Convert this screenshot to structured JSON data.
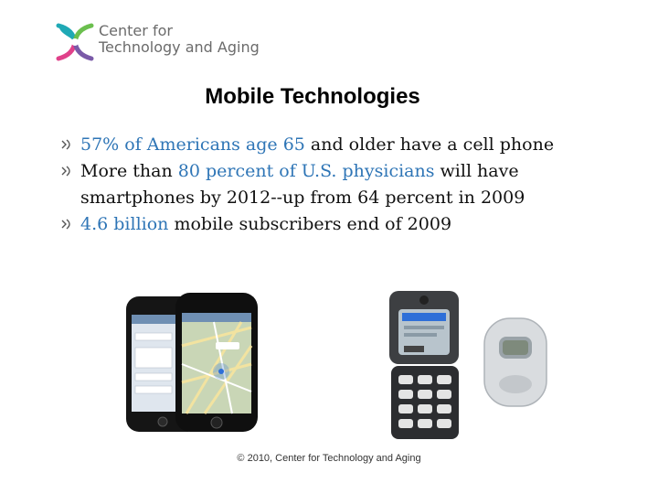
{
  "logo": {
    "line1": "Center for",
    "line2": "Technology and Aging",
    "colors": [
      "#1fa9b5",
      "#6bbf4e",
      "#e0418a",
      "#7a5aa8"
    ]
  },
  "title": "Mobile Technologies",
  "bullets": [
    {
      "parts": [
        {
          "text": "57% of Americans age 65",
          "highlight": true
        },
        {
          "text": " and older have a cell phone",
          "highlight": false
        }
      ]
    },
    {
      "parts": [
        {
          "text": "More than ",
          "highlight": false
        },
        {
          "text": "80 percent of U.S. physicians",
          "highlight": true
        },
        {
          "text": " will have smartphones by 2012--up from 64 percent in 2009",
          "highlight": false
        }
      ]
    },
    {
      "parts": [
        {
          "text": "4.6 billion",
          "highlight": true
        },
        {
          "text": " mobile subscribers end of 2009",
          "highlight": false
        }
      ]
    }
  ],
  "highlight_color": "#2e75b6",
  "footer": "© 2010, Center for Technology and Aging"
}
